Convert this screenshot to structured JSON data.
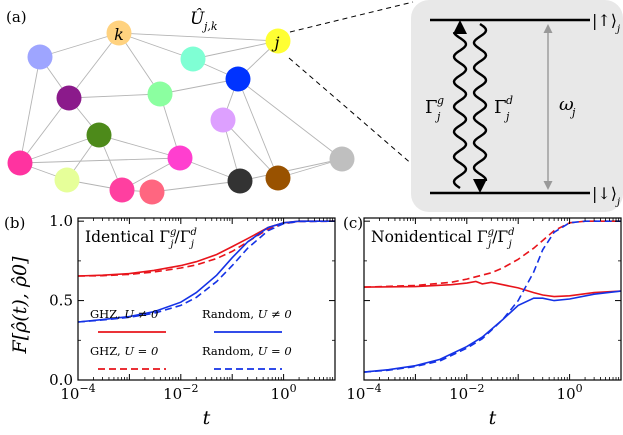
{
  "figure": {
    "panel_labels": [
      "(a)",
      "(b)",
      "(c)"
    ],
    "network": {
      "node_labels": {
        "k": "k",
        "j": "j"
      },
      "coupling_symbol": "Û",
      "coupling_subscript": "j,k",
      "node_colors": [
        "#ffd27f",
        "#ffff33",
        "#9ea5ff",
        "#8b1a8b",
        "#8bffa0",
        "#7fffd4",
        "#0033ff",
        "#ff33a0",
        "#4d8a1a",
        "#ff3fcf",
        "#dda0ff",
        "#ff3fa0",
        "#e6ff99",
        "#ff6680",
        "#333333",
        "#995200",
        "#bfbfbf"
      ]
    },
    "level_diagram": {
      "upper_state": "|↑⟩",
      "lower_state": "|↓⟩",
      "state_subscript": "j",
      "gain_rate": "Γ",
      "gain_sup": "g",
      "decay_rate": "Γ",
      "decay_sup": "d",
      "rate_sub": "j",
      "frequency": "ω",
      "frequency_sub": "j",
      "box_color": "#e8e8e8"
    }
  },
  "chart_data": [
    {
      "panel": "(b)",
      "type": "line",
      "title": "Identical",
      "title_ratio": "Γjg/Γjd",
      "ylabel": "F[ρ̂(t), ρ̂0]",
      "xlabel": "t",
      "x_scale": "log",
      "xlim": [
        0.0001,
        10
      ],
      "ylim": [
        0.0,
        1.02
      ],
      "x_ticks": [
        "10−4",
        "10−2",
        "100"
      ],
      "y_ticks": [
        "0.0",
        "0.5",
        "1.0"
      ],
      "legend": [
        {
          "name": "GHZ",
          "condition": "U ≠ 0",
          "color": "#e8141b",
          "style": "solid"
        },
        {
          "name": "Random",
          "condition": "U ≠ 0",
          "color": "#1432e6",
          "style": "solid"
        },
        {
          "name": "GHZ",
          "condition": "U = 0",
          "color": "#e8141b",
          "style": "dashed"
        },
        {
          "name": "Random",
          "condition": "U = 0",
          "color": "#1432e6",
          "style": "dashed"
        }
      ],
      "series": [
        {
          "name": "GHZ, U ≠ 0",
          "color": "#e8141b",
          "dash": false,
          "x": [
            0.0001,
            0.0003,
            0.001,
            0.003,
            0.01,
            0.02,
            0.05,
            0.1,
            0.2,
            0.5,
            1,
            2,
            10
          ],
          "y": [
            0.655,
            0.66,
            0.67,
            0.69,
            0.72,
            0.745,
            0.79,
            0.84,
            0.89,
            0.96,
            0.99,
            1.0,
            1.0
          ]
        },
        {
          "name": "GHZ, U = 0",
          "color": "#e8141b",
          "dash": true,
          "x": [
            0.0001,
            0.0003,
            0.001,
            0.003,
            0.01,
            0.02,
            0.05,
            0.1,
            0.2,
            0.5,
            1,
            2,
            10
          ],
          "y": [
            0.655,
            0.657,
            0.665,
            0.68,
            0.705,
            0.725,
            0.765,
            0.81,
            0.87,
            0.95,
            0.985,
            0.998,
            1.0
          ]
        },
        {
          "name": "Random, U ≠ 0",
          "color": "#1432e6",
          "dash": false,
          "x": [
            0.0001,
            0.0003,
            0.001,
            0.003,
            0.01,
            0.02,
            0.05,
            0.1,
            0.2,
            0.5,
            1,
            2,
            10
          ],
          "y": [
            0.365,
            0.38,
            0.4,
            0.43,
            0.49,
            0.55,
            0.66,
            0.77,
            0.87,
            0.96,
            0.99,
            1.0,
            1.0
          ]
        },
        {
          "name": "Random, U = 0",
          "color": "#1432e6",
          "dash": true,
          "x": [
            0.0001,
            0.0003,
            0.001,
            0.003,
            0.01,
            0.02,
            0.05,
            0.1,
            0.2,
            0.5,
            1,
            2,
            10
          ],
          "y": [
            0.365,
            0.378,
            0.395,
            0.42,
            0.47,
            0.52,
            0.62,
            0.72,
            0.83,
            0.94,
            0.985,
            0.998,
            1.0
          ]
        }
      ]
    },
    {
      "panel": "(c)",
      "type": "line",
      "title": "Nonidentical",
      "title_ratio": "Γjg/Γjd",
      "xlabel": "t",
      "x_scale": "log",
      "xlim": [
        0.0001,
        10
      ],
      "ylim": [
        0.0,
        1.02
      ],
      "x_ticks": [
        "10−4",
        "10−2",
        "100"
      ],
      "series": [
        {
          "name": "GHZ, U ≠ 0",
          "color": "#e8141b",
          "dash": false,
          "x": [
            0.0001,
            0.001,
            0.005,
            0.01,
            0.015,
            0.02,
            0.03,
            0.05,
            0.1,
            0.2,
            0.3,
            0.5,
            1,
            3,
            10
          ],
          "y": [
            0.585,
            0.588,
            0.6,
            0.61,
            0.62,
            0.605,
            0.615,
            0.6,
            0.58,
            0.55,
            0.535,
            0.525,
            0.53,
            0.55,
            0.56
          ]
        },
        {
          "name": "GHZ, U = 0",
          "color": "#e8141b",
          "dash": true,
          "x": [
            0.0001,
            0.001,
            0.005,
            0.01,
            0.03,
            0.05,
            0.1,
            0.2,
            0.5,
            1,
            2,
            10
          ],
          "y": [
            0.585,
            0.595,
            0.615,
            0.635,
            0.675,
            0.705,
            0.76,
            0.83,
            0.94,
            0.99,
            1.0,
            1.0
          ]
        },
        {
          "name": "Random, U ≠ 0",
          "color": "#1432e6",
          "dash": false,
          "x": [
            0.0001,
            0.0003,
            0.001,
            0.003,
            0.01,
            0.02,
            0.05,
            0.1,
            0.2,
            0.3,
            0.5,
            1,
            3,
            10
          ],
          "y": [
            0.05,
            0.065,
            0.09,
            0.13,
            0.21,
            0.27,
            0.38,
            0.47,
            0.515,
            0.515,
            0.5,
            0.51,
            0.54,
            0.56
          ]
        },
        {
          "name": "Random, U = 0",
          "color": "#1432e6",
          "dash": true,
          "x": [
            0.0001,
            0.0003,
            0.001,
            0.003,
            0.01,
            0.02,
            0.05,
            0.1,
            0.2,
            0.3,
            0.5,
            1,
            2,
            10
          ],
          "y": [
            0.05,
            0.062,
            0.085,
            0.12,
            0.2,
            0.26,
            0.38,
            0.5,
            0.68,
            0.82,
            0.93,
            0.99,
            1.0,
            1.0
          ]
        }
      ]
    }
  ]
}
